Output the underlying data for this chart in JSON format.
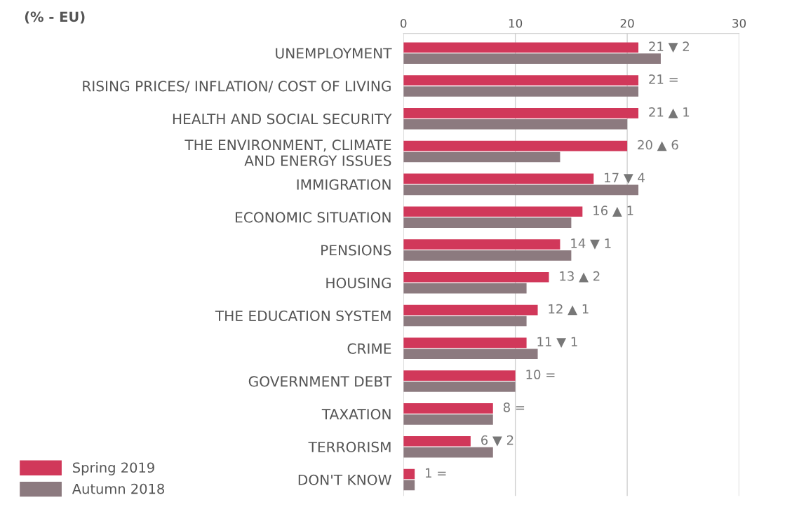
{
  "chart_data": {
    "type": "bar",
    "orientation": "horizontal",
    "title": "(% - EU)",
    "categories": [
      "UNEMPLOYMENT",
      "RISING PRICES/ INFLATION/ COST OF LIVING",
      "HEALTH AND SOCIAL SECURITY",
      "THE ENVIRONMENT, CLIMATE\nAND ENERGY ISSUES",
      "IMMIGRATION",
      "ECONOMIC SITUATION",
      "PENSIONS",
      "HOUSING",
      "THE EDUCATION SYSTEM",
      "CRIME",
      "GOVERNMENT DEBT",
      "TAXATION",
      "TERRORISM",
      "DON'T KNOW"
    ],
    "series": [
      {
        "name": "Spring 2019",
        "color": "#d1385a",
        "values": [
          21,
          21,
          21,
          20,
          17,
          16,
          14,
          13,
          12,
          11,
          10,
          8,
          6,
          1
        ],
        "value_labels": [
          "21 ▼ 2",
          "21 =",
          "21 ▲ 1",
          "20 ▲ 6",
          "17 ▼ 4",
          "16 ▲ 1",
          "14 ▼ 1",
          "13 ▲ 2",
          "12 ▲ 1",
          "11 ▼ 1",
          "10 =",
          "8 =",
          "6 ▼ 2",
          "1 ="
        ]
      },
      {
        "name": "Autumn 2018",
        "color": "#8c7a7f",
        "values": [
          23,
          21,
          20,
          14,
          21,
          15,
          15,
          11,
          11,
          12,
          10,
          8,
          8,
          1
        ]
      }
    ],
    "xlim": [
      0,
      30
    ],
    "xticks": [
      0,
      10,
      20,
      30
    ],
    "grid": "x",
    "legend": "bottom left"
  }
}
